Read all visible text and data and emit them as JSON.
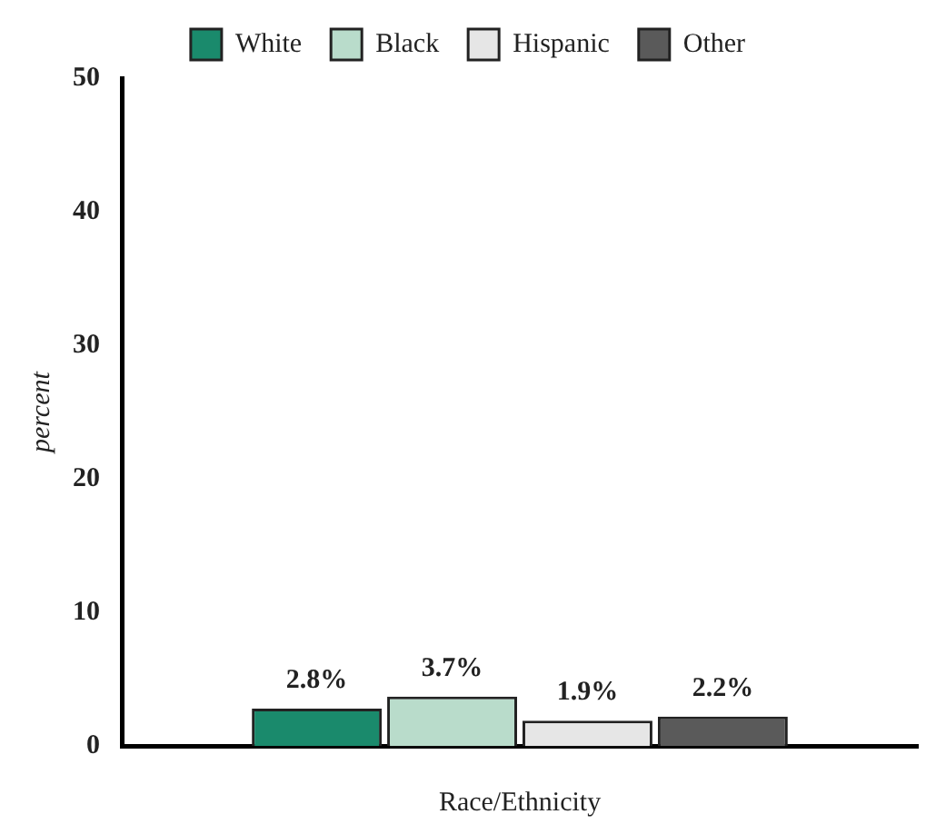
{
  "chart_data": {
    "type": "bar",
    "xlabel": "Race/Ethnicity",
    "ylabel": "percent",
    "categories": [
      null
    ],
    "series": [
      {
        "name": "White",
        "color": "#1a8a6c",
        "values": [
          2.8
        ],
        "value_labels": [
          "2.8%"
        ]
      },
      {
        "name": "Black",
        "color": "#b9dccb",
        "values": [
          3.7
        ],
        "value_labels": [
          "3.7%"
        ]
      },
      {
        "name": "Hispanic",
        "color": "#e6e6e6",
        "values": [
          1.9
        ],
        "value_labels": [
          "1.9%"
        ]
      },
      {
        "name": "Other",
        "color": "#5a5a5a",
        "values": [
          2.2
        ],
        "value_labels": [
          "2.2%"
        ]
      }
    ],
    "ylim": [
      0,
      50
    ],
    "yticks": [
      0,
      10,
      20,
      30,
      40,
      50
    ],
    "grid": false,
    "legend": "top"
  }
}
